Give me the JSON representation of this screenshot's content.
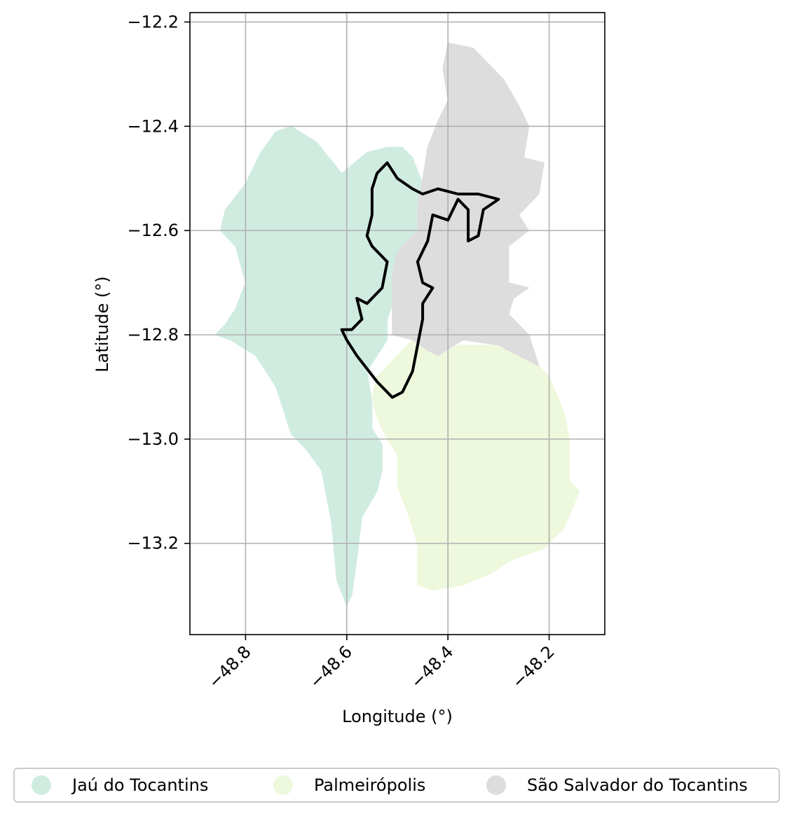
{
  "map": {
    "xlabel": "Longitude (°)",
    "ylabel": "Latitude (°)",
    "xlim": [
      -48.91,
      -48.09
    ],
    "ylim": [
      -13.375,
      -12.182
    ],
    "x_ticks": [
      -48.8,
      -48.6,
      -48.4,
      -48.2
    ],
    "x_tick_labels": [
      "−48.8",
      "−48.6",
      "−48.4",
      "−48.2"
    ],
    "y_ticks": [
      -12.2,
      -12.4,
      -12.6,
      -12.8,
      -13.0,
      -13.2
    ],
    "y_tick_labels": [
      "−12.2",
      "−12.4",
      "−12.6",
      "−12.8",
      "−13.0",
      "−13.2"
    ],
    "grid": true
  },
  "chart_data": {
    "type": "map",
    "regions": [
      {
        "name": "Jaú do Tocantins",
        "color": "#d0ece0",
        "outline": [
          [
            -48.71,
            -12.4
          ],
          [
            -48.66,
            -12.43
          ],
          [
            -48.61,
            -12.49
          ],
          [
            -48.56,
            -12.45
          ],
          [
            -48.52,
            -12.44
          ],
          [
            -48.49,
            -12.44
          ],
          [
            -48.47,
            -12.46
          ],
          [
            -48.45,
            -12.51
          ],
          [
            -48.44,
            -12.55
          ],
          [
            -48.45,
            -12.61
          ],
          [
            -48.48,
            -12.64
          ],
          [
            -48.49,
            -12.69
          ],
          [
            -48.52,
            -12.77
          ],
          [
            -48.52,
            -12.81
          ],
          [
            -48.54,
            -12.84
          ],
          [
            -48.56,
            -12.87
          ],
          [
            -48.55,
            -12.93
          ],
          [
            -48.55,
            -12.98
          ],
          [
            -48.53,
            -13.01
          ],
          [
            -48.53,
            -13.06
          ],
          [
            -48.54,
            -13.1
          ],
          [
            -48.57,
            -13.15
          ],
          [
            -48.58,
            -13.23
          ],
          [
            -48.59,
            -13.3
          ],
          [
            -48.6,
            -13.32
          ],
          [
            -48.62,
            -13.27
          ],
          [
            -48.63,
            -13.16
          ],
          [
            -48.65,
            -13.06
          ],
          [
            -48.68,
            -13.02
          ],
          [
            -48.71,
            -12.99
          ],
          [
            -48.74,
            -12.9
          ],
          [
            -48.78,
            -12.84
          ],
          [
            -48.83,
            -12.81
          ],
          [
            -48.86,
            -12.8
          ],
          [
            -48.84,
            -12.78
          ],
          [
            -48.82,
            -12.75
          ],
          [
            -48.8,
            -12.7
          ],
          [
            -48.82,
            -12.63
          ],
          [
            -48.85,
            -12.6
          ],
          [
            -48.84,
            -12.56
          ],
          [
            -48.8,
            -12.51
          ],
          [
            -48.77,
            -12.45
          ],
          [
            -48.74,
            -12.41
          ]
        ]
      },
      {
        "name": "Palmeirópolis",
        "color": "#eef8dc",
        "outline": [
          [
            -48.51,
            -12.85
          ],
          [
            -48.47,
            -12.81
          ],
          [
            -48.42,
            -12.84
          ],
          [
            -48.38,
            -12.82
          ],
          [
            -48.31,
            -12.82
          ],
          [
            -48.24,
            -12.84
          ],
          [
            -48.2,
            -12.88
          ],
          [
            -48.17,
            -12.95
          ],
          [
            -48.16,
            -13.0
          ],
          [
            -48.16,
            -13.08
          ],
          [
            -48.14,
            -13.1
          ],
          [
            -48.17,
            -13.17
          ],
          [
            -48.21,
            -13.21
          ],
          [
            -48.27,
            -13.23
          ],
          [
            -48.32,
            -13.26
          ],
          [
            -48.37,
            -13.28
          ],
          [
            -48.43,
            -13.29
          ],
          [
            -48.46,
            -13.28
          ],
          [
            -48.46,
            -13.2
          ],
          [
            -48.48,
            -13.14
          ],
          [
            -48.5,
            -13.09
          ],
          [
            -48.5,
            -13.03
          ],
          [
            -48.52,
            -13.0
          ],
          [
            -48.54,
            -12.96
          ],
          [
            -48.55,
            -12.92
          ],
          [
            -48.54,
            -12.88
          ]
        ]
      },
      {
        "name": "São Salvador do Tocantins",
        "color": "#dddddd",
        "outline": [
          [
            -48.4,
            -12.24
          ],
          [
            -48.35,
            -12.25
          ],
          [
            -48.29,
            -12.31
          ],
          [
            -48.26,
            -12.36
          ],
          [
            -48.24,
            -12.4
          ],
          [
            -48.25,
            -12.46
          ],
          [
            -48.21,
            -12.47
          ],
          [
            -48.22,
            -12.53
          ],
          [
            -48.26,
            -12.57
          ],
          [
            -48.24,
            -12.6
          ],
          [
            -48.28,
            -12.63
          ],
          [
            -48.28,
            -12.7
          ],
          [
            -48.24,
            -12.71
          ],
          [
            -48.27,
            -12.73
          ],
          [
            -48.28,
            -12.76
          ],
          [
            -48.24,
            -12.8
          ],
          [
            -48.22,
            -12.86
          ],
          [
            -48.3,
            -12.82
          ],
          [
            -48.37,
            -12.81
          ],
          [
            -48.42,
            -12.84
          ],
          [
            -48.44,
            -12.83
          ],
          [
            -48.47,
            -12.81
          ],
          [
            -48.51,
            -12.8
          ],
          [
            -48.51,
            -12.74
          ],
          [
            -48.51,
            -12.68
          ],
          [
            -48.5,
            -12.64
          ],
          [
            -48.46,
            -12.6
          ],
          [
            -48.46,
            -12.55
          ],
          [
            -48.45,
            -12.5
          ],
          [
            -48.44,
            -12.44
          ],
          [
            -48.42,
            -12.39
          ],
          [
            -48.4,
            -12.35
          ],
          [
            -48.41,
            -12.29
          ]
        ]
      }
    ],
    "boundary_line": {
      "color": "#000000",
      "points": [
        [
          -48.52,
          -12.47
        ],
        [
          -48.5,
          -12.5
        ],
        [
          -48.47,
          -12.52
        ],
        [
          -48.45,
          -12.53
        ],
        [
          -48.42,
          -12.52
        ],
        [
          -48.38,
          -12.53
        ],
        [
          -48.34,
          -12.53
        ],
        [
          -48.3,
          -12.54
        ],
        [
          -48.33,
          -12.56
        ],
        [
          -48.34,
          -12.61
        ],
        [
          -48.36,
          -12.62
        ],
        [
          -48.36,
          -12.56
        ],
        [
          -48.38,
          -12.54
        ],
        [
          -48.39,
          -12.56
        ],
        [
          -48.4,
          -12.58
        ],
        [
          -48.43,
          -12.57
        ],
        [
          -48.44,
          -12.62
        ],
        [
          -48.46,
          -12.66
        ],
        [
          -48.45,
          -12.7
        ],
        [
          -48.43,
          -12.71
        ],
        [
          -48.45,
          -12.74
        ],
        [
          -48.45,
          -12.77
        ],
        [
          -48.46,
          -12.82
        ],
        [
          -48.47,
          -12.87
        ],
        [
          -48.49,
          -12.91
        ],
        [
          -48.51,
          -12.92
        ],
        [
          -48.54,
          -12.89
        ],
        [
          -48.58,
          -12.84
        ],
        [
          -48.6,
          -12.81
        ],
        [
          -48.61,
          -12.79
        ],
        [
          -48.59,
          -12.79
        ],
        [
          -48.57,
          -12.77
        ],
        [
          -48.58,
          -12.73
        ],
        [
          -48.56,
          -12.74
        ],
        [
          -48.53,
          -12.71
        ],
        [
          -48.52,
          -12.66
        ],
        [
          -48.55,
          -12.63
        ],
        [
          -48.56,
          -12.61
        ],
        [
          -48.55,
          -12.57
        ],
        [
          -48.55,
          -12.55
        ],
        [
          -48.55,
          -12.52
        ],
        [
          -48.54,
          -12.49
        ]
      ]
    }
  },
  "legend": {
    "items": [
      {
        "label": "Jaú do Tocantins",
        "color": "#d0ece0"
      },
      {
        "label": "Palmeirópolis",
        "color": "#eef8dc"
      },
      {
        "label": "São Salvador do Tocantins",
        "color": "#dddddd"
      }
    ]
  }
}
